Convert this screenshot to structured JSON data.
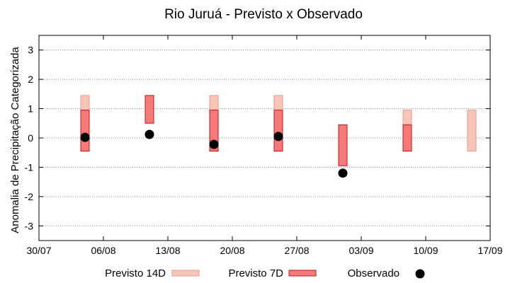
{
  "chart_data": {
    "type": "box",
    "title": "Rio Juruá - Previsto x Observado",
    "ylabel": "Anomalia de Precipitação Categorizada",
    "xlabel": "",
    "ylim": [
      -3.5,
      3.5
    ],
    "yticks": [
      3,
      2,
      1,
      0,
      -1,
      -2,
      -3
    ],
    "xlim": [
      "30/07",
      "17/09"
    ],
    "xticks": [
      "30/07",
      "06/08",
      "13/08",
      "20/08",
      "27/08",
      "03/09",
      "10/09",
      "17/09"
    ],
    "grid": "y",
    "legend_position": "bottom",
    "colors": {
      "forecast14": "#f7c6b8",
      "forecast14_edge": "#e89a8a",
      "forecast7": "#f77a7a",
      "forecast7_edge": "#c0141e",
      "observed": "#000000",
      "grid": "#888888"
    },
    "series": [
      {
        "name": "Previsto 14D",
        "kind": "range",
        "points": [
          {
            "x": "04/08",
            "low": -0.45,
            "high": 1.45
          },
          {
            "x": "18/08",
            "low": -0.45,
            "high": 1.45
          },
          {
            "x": "25/08",
            "low": -0.45,
            "high": 1.45
          },
          {
            "x": "08/09",
            "low": 0.45,
            "high": 0.95
          },
          {
            "x": "15/09",
            "low": -0.45,
            "high": 0.95
          }
        ]
      },
      {
        "name": "Previsto 7D",
        "kind": "range",
        "points": [
          {
            "x": "04/08",
            "low": -0.45,
            "high": 0.95
          },
          {
            "x": "11/08",
            "low": 0.5,
            "high": 1.45
          },
          {
            "x": "18/08",
            "low": -0.45,
            "high": 0.95
          },
          {
            "x": "25/08",
            "low": -0.45,
            "high": 0.95
          },
          {
            "x": "01/09",
            "low": -0.95,
            "high": 0.45
          },
          {
            "x": "08/09",
            "low": -0.45,
            "high": 0.45
          }
        ]
      },
      {
        "name": "Observado",
        "kind": "point",
        "points": [
          {
            "x": "04/08",
            "y": 0.02
          },
          {
            "x": "11/08",
            "y": 0.12
          },
          {
            "x": "18/08",
            "y": -0.22
          },
          {
            "x": "25/08",
            "y": 0.05
          },
          {
            "x": "01/09",
            "y": -1.2
          }
        ]
      }
    ]
  }
}
